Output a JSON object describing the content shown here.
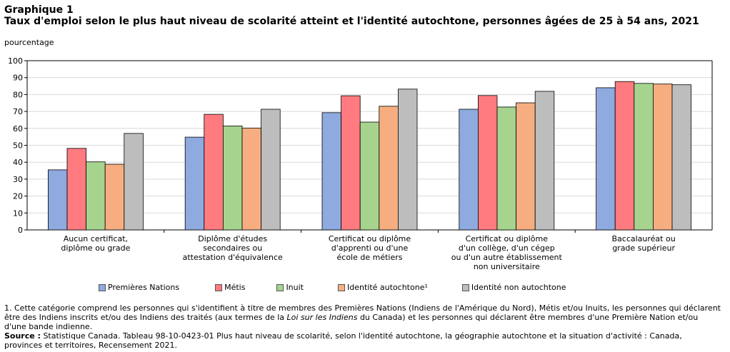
{
  "title": {
    "label": "Graphique 1",
    "text": "Taux d'emploi selon le plus haut niveau de scolarité atteint et l'identité autochtone, personnes âgées de 25 à 54 ans, 2021"
  },
  "y_unit": "pourcentage",
  "chart_data": {
    "type": "bar",
    "categories": [
      [
        "Aucun certificat,",
        "diplôme ou grade"
      ],
      [
        "Diplôme d'études",
        "secondaires ou",
        "attestation d'équivalence"
      ],
      [
        "Certificat ou diplôme",
        "d'apprenti ou d'une",
        "école de métiers"
      ],
      [
        "Certificat ou diplôme",
        "d'un collège, d'un cégep",
        "ou d'un autre établissement",
        "non universitaire"
      ],
      [
        "Baccalauréat ou",
        "grade supérieur"
      ]
    ],
    "series": [
      {
        "name": "Premières Nations",
        "color": "#8eaadf",
        "values": [
          35.5,
          54.8,
          69.3,
          71.3,
          84.0
        ]
      },
      {
        "name": "Métis",
        "color": "#ff7b80",
        "values": [
          48.2,
          68.3,
          79.3,
          79.4,
          87.7
        ]
      },
      {
        "name": "Inuit",
        "color": "#a6d48e",
        "values": [
          40.2,
          61.4,
          63.7,
          72.6,
          86.6
        ]
      },
      {
        "name": "Identité autochtone¹",
        "color": "#f6ae80",
        "values": [
          38.8,
          60.2,
          73.1,
          75.1,
          86.2
        ]
      },
      {
        "name": "Identité non autochtone",
        "color": "#bdbdbd",
        "values": [
          57.0,
          71.3,
          83.2,
          81.9,
          85.8
        ]
      }
    ],
    "ylim": [
      0,
      100
    ],
    "yticks": [
      0,
      10,
      20,
      30,
      40,
      50,
      60,
      70,
      80,
      90,
      100
    ],
    "grid": true,
    "legend_position": "bottom"
  },
  "footnote": {
    "note1_before": "1. Cette catégorie comprend les personnes qui s'identifient à titre de membres des Premières Nations (Indiens de l'Amérique du Nord), Métis et/ou Inuits, les personnes qui déclarent être des Indiens inscrits et/ou des Indiens des traités (aux termes de la ",
    "note1_italic": "Loi sur les Indiens",
    "note1_after": " du Canada) et les personnes qui déclarent être membres d'une Première Nation et/ou d'une bande indienne.",
    "source_label": "Source :",
    "source_text": " Statistique Canada. Tableau 98-10-0423-01 Plus haut niveau de scolarité, selon l'identité autochtone, la géographie autochtone et la situation d'activité : Canada, provinces et territoires, Recensement 2021."
  }
}
